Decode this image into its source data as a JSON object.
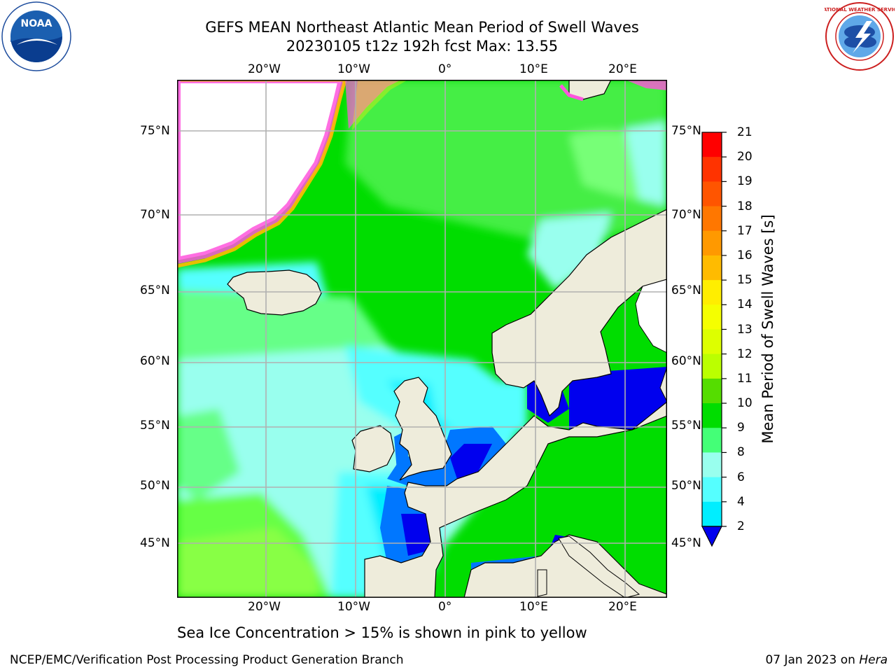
{
  "title": {
    "line1": "GEFS MEAN Northeast Atlantic Mean Period of Swell Waves",
    "line2": "20230105 t12z 192h fcst   Max: 13.55"
  },
  "logos": {
    "noaa_text": "NOAA",
    "nws_text": "NATIONAL WEATHER SERVICE"
  },
  "map": {
    "lon_labels": [
      "20°W",
      "10°W",
      "0°",
      "10°E",
      "20°E"
    ],
    "lat_labels": [
      "75°N",
      "70°N",
      "65°N",
      "60°N",
      "55°N",
      "50°N",
      "45°N"
    ],
    "colors": {
      "land": "#eeecdb",
      "grid": "#b0b0b0",
      "coast": "#000000",
      "no_data": "#ffffff"
    }
  },
  "colorbar": {
    "label": "Mean Period of Swell Waves [s]",
    "ticks": [
      "21",
      "20",
      "19",
      "18",
      "17",
      "16",
      "15",
      "14",
      "13",
      "12",
      "11",
      "10",
      "9",
      "8",
      "6",
      "4",
      "2"
    ],
    "colors": [
      "#ff0000",
      "#ff3300",
      "#ff5500",
      "#ff7700",
      "#ff9900",
      "#ffbb00",
      "#ffee00",
      "#f5ff00",
      "#ddff00",
      "#bbff00",
      "#55dd00",
      "#00dd00",
      "#44ff77",
      "#99ffee",
      "#55ffff",
      "#00eeff",
      "#0077ff",
      "#0000ee"
    ]
  },
  "note": "Sea Ice Concentration > 15% is shown in pink to yellow",
  "footer": {
    "left": "NCEP/EMC/Verification Post Processing Product Generation Branch",
    "date": "07 Jan 2023 on ",
    "host": "Hera"
  }
}
